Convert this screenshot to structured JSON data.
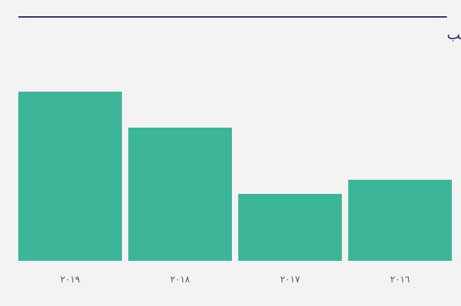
{
  "chart_data": {
    "type": "bar",
    "title": "ساعات التدريب",
    "categories": [
      "٢٠١٩",
      "٢٠١٨",
      "٢٠١٧",
      "٢٠١٦"
    ],
    "values": [
      240,
      189,
      95,
      115
    ],
    "color": "#3db598"
  }
}
